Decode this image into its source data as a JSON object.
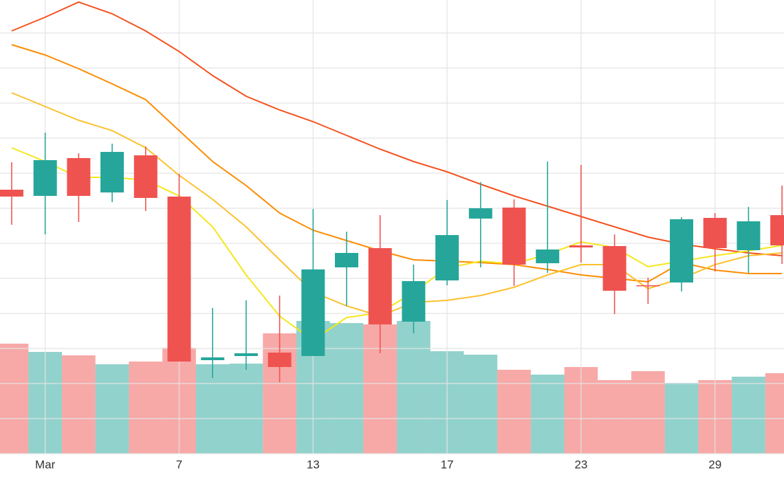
{
  "chart_data": {
    "type": "candlestick",
    "categories": [
      null,
      "Mar",
      null,
      null,
      null,
      "7",
      null,
      null,
      null,
      "13",
      null,
      null,
      null,
      "17",
      null,
      null,
      null,
      "23",
      null,
      null,
      null,
      "29",
      null,
      null
    ],
    "open": [
      38.4,
      37.5,
      43.0,
      38.0,
      43.4,
      37.4,
      13.6,
      14.2,
      14.7,
      14.2,
      27.1,
      29.9,
      19.2,
      25.2,
      34.2,
      35.8,
      27.7,
      30.3,
      30.2,
      24.5,
      24.9,
      34.3,
      29.6,
      34.7
    ],
    "high": [
      42.4,
      46.7,
      43.7,
      45.1,
      44.7,
      40.7,
      21.2,
      22.3,
      23.0,
      35.6,
      32.3,
      34.7,
      27.5,
      36.9,
      39.5,
      37.0,
      42.5,
      42.0,
      31.9,
      25.6,
      34.4,
      35.0,
      35.9,
      39.0
    ],
    "low": [
      33.3,
      31.9,
      33.7,
      36.6,
      35.3,
      13.4,
      11.0,
      12.2,
      10.4,
      14.2,
      21.5,
      14.6,
      17.5,
      24.5,
      27.1,
      24.4,
      26.3,
      27.8,
      20.3,
      21.8,
      23.6,
      26.5,
      26.3,
      27.6
    ],
    "close": [
      37.4,
      42.7,
      37.5,
      43.9,
      37.2,
      13.4,
      14.0,
      14.6,
      12.6,
      26.8,
      29.2,
      18.8,
      25.1,
      31.8,
      35.7,
      27.5,
      29.7,
      30.0,
      23.7,
      24.4,
      34.1,
      29.9,
      33.8,
      30.3
    ],
    "volume": [
      16.0,
      14.8,
      14.3,
      13.0,
      13.4,
      15.4,
      13.0,
      13.1,
      17.5,
      19.3,
      19.0,
      18.8,
      19.3,
      14.9,
      14.4,
      12.2,
      11.5,
      12.6,
      10.7,
      12.0,
      10.3,
      10.7,
      11.2,
      11.7
    ],
    "up_color": "#26a69a",
    "down_color": "#ef5350",
    "lines": [
      {
        "color": "#f4511e",
        "values": [
          61.5,
          63.5,
          65.7,
          64.0,
          61.5,
          58.5,
          55.0,
          52.0,
          50.0,
          48.3,
          46.3,
          44.3,
          42.5,
          41.0,
          39.2,
          37.5,
          36.0,
          34.5,
          33.0,
          31.5,
          30.5,
          29.8,
          29.2,
          28.8
        ]
      },
      {
        "color": "#fb8c00",
        "values": [
          59.5,
          58.0,
          56.0,
          53.8,
          51.5,
          47.0,
          42.5,
          39.0,
          35.0,
          32.5,
          31.0,
          29.5,
          28.2,
          28.0,
          27.8,
          27.5,
          26.8,
          26.0,
          25.5,
          25.0,
          27.8,
          26.7,
          26.2,
          26.2
        ]
      },
      {
        "color": "#fbc02d",
        "values": [
          52.5,
          50.5,
          48.5,
          47.0,
          44.5,
          40.5,
          37.0,
          33.0,
          28.2,
          23.5,
          21.5,
          20.0,
          22.0,
          22.3,
          23.0,
          24.2,
          26.0,
          27.5,
          27.5,
          24.0,
          25.5,
          27.5,
          28.8,
          29.2
        ]
      },
      {
        "color": "#f5e61a",
        "values": [
          44.5,
          42.5,
          40.2,
          40.2,
          39.8,
          37.5,
          33.0,
          26.0,
          20.0,
          16.5,
          19.8,
          20.5,
          23.5,
          27.0,
          28.0,
          27.6,
          29.0,
          30.8,
          30.0,
          27.2,
          28.0,
          28.8,
          29.5,
          30.3
        ]
      }
    ],
    "ylim": [
      0,
      66.3
    ],
    "yticks": [
      0,
      5.1,
      10.2,
      15.3,
      20.4,
      25.5,
      30.6,
      35.7,
      40.8,
      45.9,
      51,
      56.1,
      61.2
    ],
    "grid": true
  }
}
